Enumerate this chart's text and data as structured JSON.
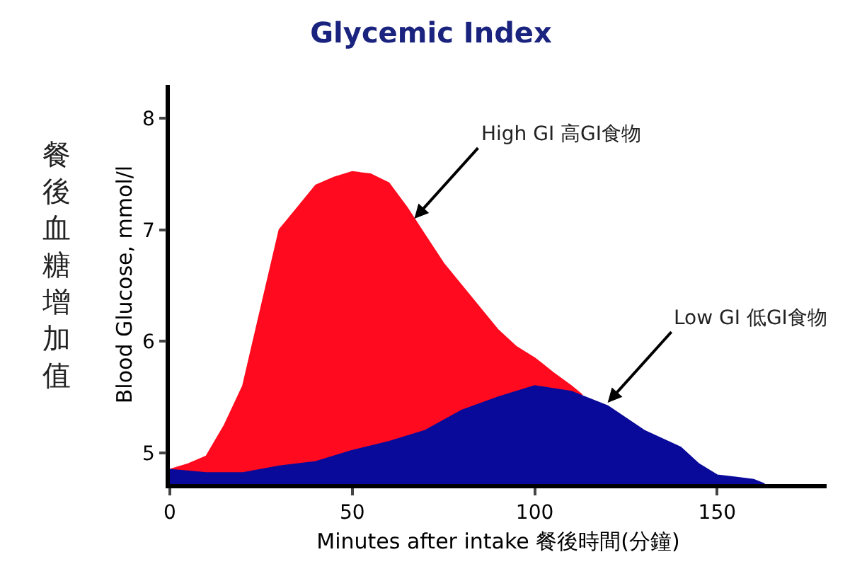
{
  "chart_data": {
    "type": "area",
    "title": "Glycemic Index",
    "xlabel": "Minutes after intake 餐後時間(分鐘)",
    "ylabel": "Blood Glucose, mmol/l",
    "xlim": [
      0,
      180
    ],
    "xticks": [
      0,
      50,
      100,
      150
    ],
    "ylim": [
      4.72,
      8.3
    ],
    "yticks": [
      5,
      6,
      7,
      8
    ],
    "series": [
      {
        "color": "#ff0a1e",
        "x": [
          0,
          5,
          10,
          15,
          20,
          25,
          30,
          35,
          40,
          45,
          50,
          55,
          60,
          65,
          70,
          75,
          80,
          85,
          90,
          95,
          100,
          105,
          110,
          113
        ],
        "values": [
          4.85,
          4.9,
          4.97,
          5.25,
          5.6,
          6.3,
          7.0,
          7.2,
          7.4,
          7.47,
          7.52,
          7.5,
          7.42,
          7.2,
          6.95,
          6.7,
          6.5,
          6.3,
          6.1,
          5.95,
          5.85,
          5.72,
          5.6,
          5.52
        ]
      },
      {
        "color": "#0a0a9a",
        "x": [
          0,
          10,
          20,
          30,
          40,
          50,
          60,
          70,
          80,
          90,
          100,
          110,
          120,
          130,
          140,
          145,
          150,
          155,
          160,
          163
        ],
        "values": [
          4.85,
          4.82,
          4.82,
          4.88,
          4.92,
          5.02,
          5.1,
          5.2,
          5.38,
          5.5,
          5.6,
          5.55,
          5.42,
          5.2,
          5.05,
          4.9,
          4.8,
          4.78,
          4.76,
          4.72
        ]
      }
    ],
    "annotations": [
      {
        "text": "High GI 高GI食物",
        "x": 67,
        "y": 7.1
      },
      {
        "text": "Low GI 低GI食物",
        "x": 120,
        "y": 5.45
      },
      "餐後血糖增加值"
    ]
  }
}
